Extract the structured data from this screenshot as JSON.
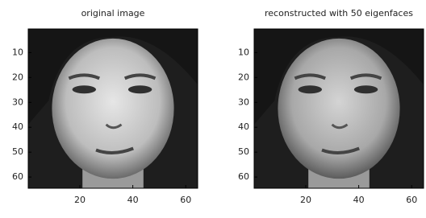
{
  "panels": [
    {
      "title": "original image",
      "xlim": [
        0.5,
        64.5
      ],
      "ylim": [
        0.5,
        64.5
      ],
      "xticks": [
        20,
        40,
        60
      ],
      "yticks": [
        10,
        20,
        30,
        40,
        50,
        60
      ]
    },
    {
      "title": "reconstructed with 50 eigenfaces",
      "xlim": [
        0.5,
        64.5
      ],
      "ylim": [
        0.5,
        64.5
      ],
      "xticks": [
        20,
        40,
        60
      ],
      "yticks": [
        10,
        20,
        30,
        40,
        50,
        60
      ]
    }
  ]
}
